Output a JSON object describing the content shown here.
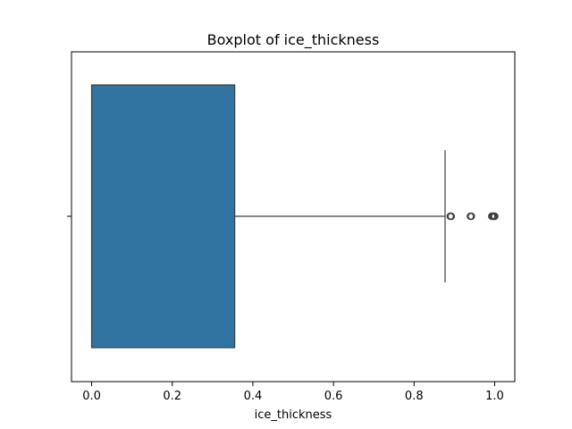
{
  "chart_data": {
    "type": "box",
    "title": "Boxplot of ice_thickness",
    "xlabel": "ice_thickness",
    "ylabel": "",
    "xlim": [
      -0.05,
      1.05
    ],
    "x_ticks": [
      0.0,
      0.2,
      0.4,
      0.6,
      0.8,
      1.0
    ],
    "x_tick_labels": [
      "0.0",
      "0.2",
      "0.4",
      "0.6",
      "0.8",
      "1.0"
    ],
    "box": {
      "min": 0.0,
      "q1": 0.0,
      "median": 0.0,
      "q3": 0.355,
      "max": 0.877
    },
    "outliers": [
      0.89,
      0.892,
      0.94,
      0.942,
      0.993,
      0.996,
      0.998,
      1.0
    ],
    "orientation": "horizontal",
    "grid": false,
    "colors": {
      "box_fill": "#3274a1",
      "line": "#3f3f3f"
    }
  }
}
